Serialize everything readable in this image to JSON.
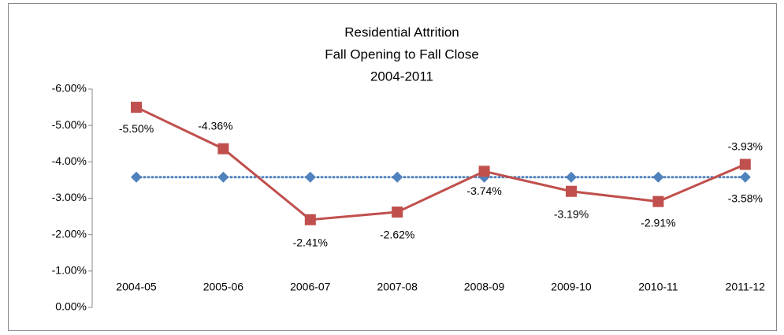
{
  "chart_data": {
    "type": "line",
    "title": [
      "Residential Attrition",
      "Fall Opening to Fall Close",
      "2004-2011"
    ],
    "categories": [
      "2004-05",
      "2005-06",
      "2006-07",
      "2007-08",
      "2008-09",
      "2009-10",
      "2010-11",
      "2011-12"
    ],
    "series": [
      {
        "color": "#4f81bd",
        "marker": "diamond",
        "dash": "dotted",
        "values": [
          -3.58,
          -3.58,
          -3.58,
          -3.58,
          -3.58,
          -3.58,
          -3.58,
          -3.58
        ],
        "value_labels": [
          null,
          null,
          null,
          null,
          null,
          null,
          null,
          "-3.58%"
        ]
      },
      {
        "color": "#c0504d",
        "marker": "square",
        "dash": "solid",
        "values": [
          -5.5,
          -4.36,
          -2.41,
          -2.62,
          -3.74,
          -3.19,
          -2.91,
          -3.93
        ],
        "value_labels": [
          "-5.50%",
          "-4.36%",
          "-2.41%",
          "-2.62%",
          "-3.74%",
          "-3.19%",
          "-2.91%",
          "-3.93%"
        ]
      }
    ],
    "ylim": [
      0,
      -6
    ],
    "yticks": [
      {
        "value": -6,
        "label": "-6.00%"
      },
      {
        "value": -5,
        "label": "-5.00%"
      },
      {
        "value": -4,
        "label": "-4.00%"
      },
      {
        "value": -3,
        "label": "-3.00%"
      },
      {
        "value": -2,
        "label": "-2.00%"
      },
      {
        "value": -1,
        "label": "-1.00%"
      },
      {
        "value": 0,
        "label": "0.00%"
      }
    ]
  }
}
